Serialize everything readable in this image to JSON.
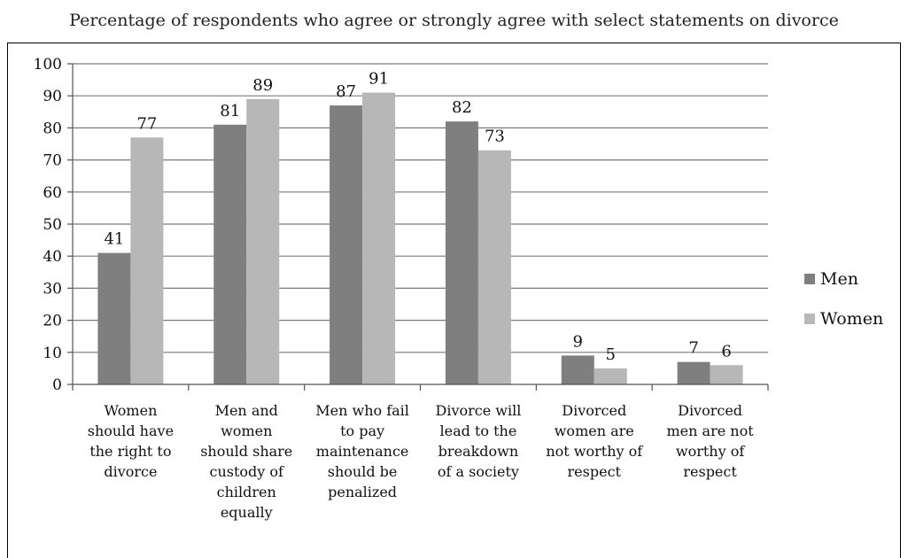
{
  "chart_data": {
    "type": "bar",
    "title": "Percentage of respondents who agree or strongly agree with select statements on divorce",
    "categories": [
      [
        "Women",
        "should have",
        "the right to",
        "divorce"
      ],
      [
        "Men and",
        "women",
        "should share",
        "custody of",
        "children",
        "equally"
      ],
      [
        "Men who fail",
        "to pay",
        "maintenance",
        "should be",
        "penalized"
      ],
      [
        "Divorce will",
        "lead to the",
        "breakdown",
        "of a society"
      ],
      [
        "Divorced",
        "women are",
        "not worthy of",
        "respect"
      ],
      [
        "Divorced",
        "men are not",
        "worthy of",
        "respect"
      ]
    ],
    "series": [
      {
        "name": "Men",
        "values": [
          41,
          81,
          87,
          82,
          9,
          7
        ],
        "color": "#7f7f7f"
      },
      {
        "name": "Women",
        "values": [
          77,
          89,
          91,
          73,
          5,
          6
        ],
        "color": "#b7b7b7"
      }
    ],
    "ylim": [
      0,
      100
    ],
    "yticks": [
      0,
      10,
      20,
      30,
      40,
      50,
      60,
      70,
      80,
      90,
      100
    ],
    "grid": true,
    "legend": "right"
  }
}
